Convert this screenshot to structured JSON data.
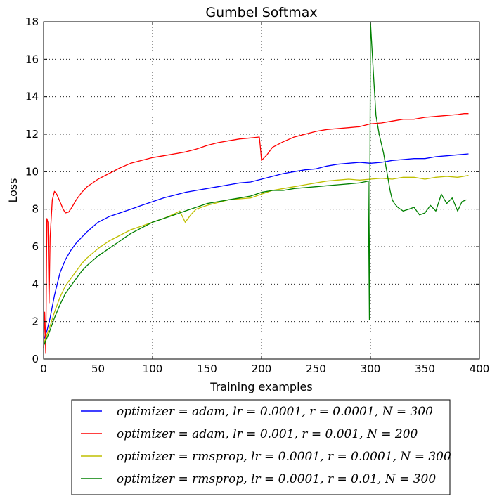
{
  "chart_data": {
    "type": "line",
    "title": "Gumbel Softmax",
    "xlabel": "Training examples",
    "ylabel": "Loss",
    "xlim": [
      0,
      400
    ],
    "ylim": [
      0,
      18
    ],
    "x_ticks": [
      0,
      50,
      100,
      150,
      200,
      250,
      300,
      350,
      400
    ],
    "y_ticks": [
      0,
      2,
      4,
      6,
      8,
      10,
      12,
      14,
      16,
      18
    ],
    "grid": true,
    "legend_position": "below",
    "series": [
      {
        "name": "optimizer = adam, lr = 0.0001, r = 0.0001, N = 300",
        "color": "#0000ff",
        "points": [
          [
            0,
            1.0
          ],
          [
            3,
            1.5
          ],
          [
            6,
            2.2
          ],
          [
            10,
            3.4
          ],
          [
            15,
            4.6
          ],
          [
            20,
            5.3
          ],
          [
            25,
            5.8
          ],
          [
            30,
            6.2
          ],
          [
            40,
            6.8
          ],
          [
            50,
            7.3
          ],
          [
            60,
            7.6
          ],
          [
            70,
            7.8
          ],
          [
            80,
            8.0
          ],
          [
            90,
            8.2
          ],
          [
            100,
            8.4
          ],
          [
            110,
            8.6
          ],
          [
            120,
            8.75
          ],
          [
            130,
            8.9
          ],
          [
            140,
            9.0
          ],
          [
            150,
            9.1
          ],
          [
            160,
            9.2
          ],
          [
            170,
            9.3
          ],
          [
            180,
            9.4
          ],
          [
            190,
            9.45
          ],
          [
            200,
            9.6
          ],
          [
            210,
            9.75
          ],
          [
            220,
            9.9
          ],
          [
            230,
            10.0
          ],
          [
            240,
            10.1
          ],
          [
            250,
            10.15
          ],
          [
            260,
            10.3
          ],
          [
            270,
            10.4
          ],
          [
            280,
            10.45
          ],
          [
            290,
            10.5
          ],
          [
            300,
            10.45
          ],
          [
            310,
            10.5
          ],
          [
            320,
            10.6
          ],
          [
            330,
            10.65
          ],
          [
            340,
            10.7
          ],
          [
            350,
            10.7
          ],
          [
            360,
            10.8
          ],
          [
            370,
            10.85
          ],
          [
            380,
            10.9
          ],
          [
            390,
            10.95
          ]
        ]
      },
      {
        "name": "optimizer = adam, lr = 0.001, r = 0.001, N = 200",
        "color": "#ff0000",
        "points": [
          [
            0,
            0.6
          ],
          [
            1,
            2.5
          ],
          [
            2,
            0.3
          ],
          [
            3,
            7.5
          ],
          [
            4,
            7.3
          ],
          [
            5,
            3.0
          ],
          [
            6,
            6.5
          ],
          [
            8,
            8.5
          ],
          [
            10,
            8.95
          ],
          [
            12,
            8.8
          ],
          [
            15,
            8.4
          ],
          [
            18,
            8.0
          ],
          [
            20,
            7.8
          ],
          [
            23,
            7.85
          ],
          [
            26,
            8.1
          ],
          [
            30,
            8.5
          ],
          [
            35,
            8.9
          ],
          [
            40,
            9.2
          ],
          [
            50,
            9.6
          ],
          [
            60,
            9.9
          ],
          [
            70,
            10.2
          ],
          [
            80,
            10.45
          ],
          [
            90,
            10.6
          ],
          [
            100,
            10.75
          ],
          [
            110,
            10.85
          ],
          [
            120,
            10.95
          ],
          [
            130,
            11.05
          ],
          [
            140,
            11.2
          ],
          [
            150,
            11.4
          ],
          [
            160,
            11.55
          ],
          [
            170,
            11.65
          ],
          [
            180,
            11.75
          ],
          [
            190,
            11.8
          ],
          [
            198,
            11.85
          ],
          [
            199,
            11.3
          ],
          [
            200,
            10.6
          ],
          [
            205,
            10.9
          ],
          [
            210,
            11.3
          ],
          [
            220,
            11.6
          ],
          [
            230,
            11.85
          ],
          [
            240,
            12.0
          ],
          [
            250,
            12.15
          ],
          [
            260,
            12.25
          ],
          [
            270,
            12.3
          ],
          [
            280,
            12.35
          ],
          [
            290,
            12.4
          ],
          [
            300,
            12.55
          ],
          [
            310,
            12.6
          ],
          [
            320,
            12.7
          ],
          [
            330,
            12.8
          ],
          [
            340,
            12.8
          ],
          [
            350,
            12.9
          ],
          [
            360,
            12.95
          ],
          [
            370,
            13.0
          ],
          [
            380,
            13.05
          ],
          [
            386,
            13.1
          ],
          [
            390,
            13.1
          ]
        ]
      },
      {
        "name": "optimizer = rmsprop, lr = 0.0001, r = 0.0001, N = 300",
        "color": "#bfbf00",
        "points": [
          [
            0,
            0.8
          ],
          [
            5,
            1.6
          ],
          [
            10,
            2.5
          ],
          [
            15,
            3.3
          ],
          [
            20,
            3.9
          ],
          [
            25,
            4.3
          ],
          [
            30,
            4.7
          ],
          [
            35,
            5.1
          ],
          [
            40,
            5.4
          ],
          [
            50,
            5.9
          ],
          [
            60,
            6.3
          ],
          [
            70,
            6.6
          ],
          [
            80,
            6.9
          ],
          [
            90,
            7.1
          ],
          [
            100,
            7.3
          ],
          [
            110,
            7.5
          ],
          [
            120,
            7.75
          ],
          [
            125,
            7.9
          ],
          [
            130,
            7.3
          ],
          [
            135,
            7.7
          ],
          [
            140,
            8.0
          ],
          [
            150,
            8.2
          ],
          [
            160,
            8.35
          ],
          [
            170,
            8.5
          ],
          [
            180,
            8.55
          ],
          [
            190,
            8.6
          ],
          [
            200,
            8.8
          ],
          [
            210,
            9.0
          ],
          [
            220,
            9.1
          ],
          [
            230,
            9.2
          ],
          [
            240,
            9.3
          ],
          [
            250,
            9.4
          ],
          [
            260,
            9.5
          ],
          [
            270,
            9.55
          ],
          [
            280,
            9.6
          ],
          [
            290,
            9.55
          ],
          [
            300,
            9.6
          ],
          [
            310,
            9.65
          ],
          [
            320,
            9.6
          ],
          [
            330,
            9.7
          ],
          [
            340,
            9.7
          ],
          [
            350,
            9.6
          ],
          [
            360,
            9.7
          ],
          [
            370,
            9.75
          ],
          [
            380,
            9.7
          ],
          [
            390,
            9.8
          ]
        ]
      },
      {
        "name": "optimizer = rmsprop, lr = 0.0001, r = 0.01, N = 300",
        "color": "#008000",
        "points": [
          [
            0,
            0.7
          ],
          [
            5,
            1.4
          ],
          [
            10,
            2.2
          ],
          [
            15,
            2.9
          ],
          [
            20,
            3.5
          ],
          [
            25,
            3.9
          ],
          [
            30,
            4.3
          ],
          [
            35,
            4.7
          ],
          [
            40,
            5.0
          ],
          [
            50,
            5.5
          ],
          [
            60,
            5.9
          ],
          [
            70,
            6.3
          ],
          [
            80,
            6.7
          ],
          [
            90,
            7.0
          ],
          [
            100,
            7.3
          ],
          [
            110,
            7.5
          ],
          [
            120,
            7.7
          ],
          [
            130,
            7.9
          ],
          [
            140,
            8.1
          ],
          [
            150,
            8.3
          ],
          [
            160,
            8.4
          ],
          [
            170,
            8.5
          ],
          [
            180,
            8.6
          ],
          [
            190,
            8.7
          ],
          [
            200,
            8.9
          ],
          [
            210,
            9.0
          ],
          [
            220,
            9.0
          ],
          [
            230,
            9.1
          ],
          [
            240,
            9.15
          ],
          [
            250,
            9.2
          ],
          [
            260,
            9.25
          ],
          [
            270,
            9.3
          ],
          [
            280,
            9.35
          ],
          [
            290,
            9.4
          ],
          [
            298,
            9.5
          ],
          [
            299,
            2.1
          ],
          [
            300,
            18.0
          ],
          [
            301,
            17.0
          ],
          [
            303,
            15.0
          ],
          [
            305,
            13.0
          ],
          [
            308,
            12.0
          ],
          [
            312,
            11.0
          ],
          [
            315,
            10.0
          ],
          [
            318,
            9.0
          ],
          [
            320,
            8.5
          ],
          [
            322,
            8.3
          ],
          [
            325,
            8.1
          ],
          [
            330,
            7.9
          ],
          [
            335,
            8.0
          ],
          [
            340,
            8.1
          ],
          [
            345,
            7.7
          ],
          [
            350,
            7.8
          ],
          [
            355,
            8.2
          ],
          [
            360,
            7.9
          ],
          [
            365,
            8.8
          ],
          [
            370,
            8.3
          ],
          [
            375,
            8.6
          ],
          [
            380,
            7.9
          ],
          [
            384,
            8.4
          ],
          [
            388,
            8.5
          ]
        ]
      }
    ]
  }
}
